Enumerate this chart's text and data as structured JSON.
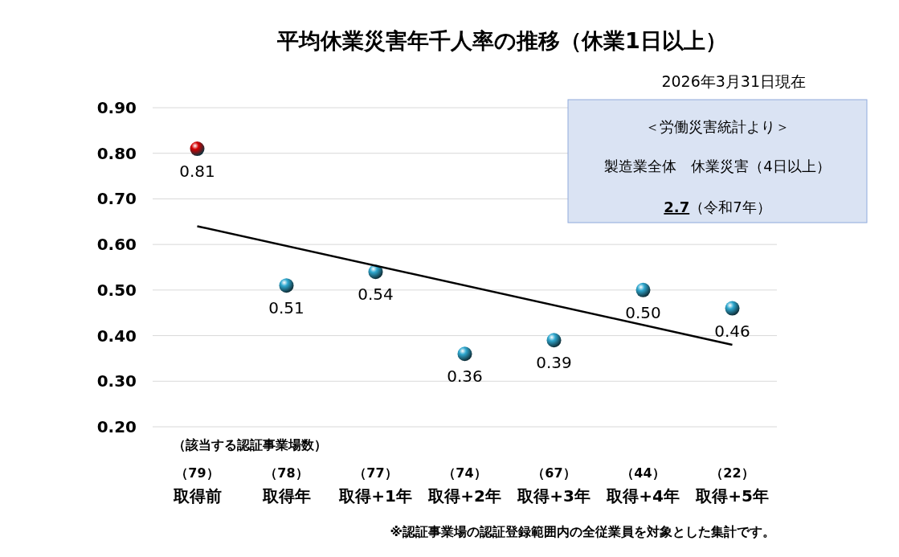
{
  "chart_data": {
    "type": "scatter",
    "title": "平均休業災害年千人率の推移（休業1日以上）",
    "categories": [
      "取得前",
      "取得年",
      "取得+1年",
      "取得+2年",
      "取得+3年",
      "取得+4年",
      "取得+5年"
    ],
    "series": [
      {
        "values": [
          0.81,
          0.51,
          0.54,
          0.36,
          0.39,
          0.5,
          0.46
        ],
        "marker": "circle",
        "colors": [
          "#d40000",
          "#2fa8cf",
          "#2fa8cf",
          "#2fa8cf",
          "#2fa8cf",
          "#2fa8cf",
          "#2fa8cf"
        ],
        "value_labels": [
          "0.81",
          "0.51",
          "0.54",
          "0.36",
          "0.39",
          "0.50",
          "0.46"
        ]
      },
      {
        "type": "line",
        "x": [
          "取得前",
          "取得+5年"
        ],
        "values": [
          0.64,
          0.38
        ],
        "color": "#000000"
      }
    ],
    "ylim": [
      0.2,
      0.9
    ],
    "yticks": [
      {
        "value": 0.2,
        "label": "0.20"
      },
      {
        "value": 0.3,
        "label": "0.30"
      },
      {
        "value": 0.4,
        "label": "0.40"
      },
      {
        "value": 0.5,
        "label": "0.50"
      },
      {
        "value": 0.6,
        "label": "0.60"
      },
      {
        "value": 0.7,
        "label": "0.70"
      },
      {
        "value": 0.8,
        "label": "0.80"
      },
      {
        "value": 0.9,
        "label": "0.90"
      }
    ],
    "grid": "y",
    "annotations": [
      "2026年3月31日現在",
      "＜労働災害統計より＞",
      "製造業全体　休業災害（4日以上）",
      "2.7（令和7年）",
      "（該当する認証事業場数）",
      "（79）",
      "（78）",
      "（77）",
      "（74）",
      "（67）",
      "（44）",
      "（22）",
      "※認証事業場の認証登録範囲内の全従業員を対象とした集計です。"
    ]
  }
}
